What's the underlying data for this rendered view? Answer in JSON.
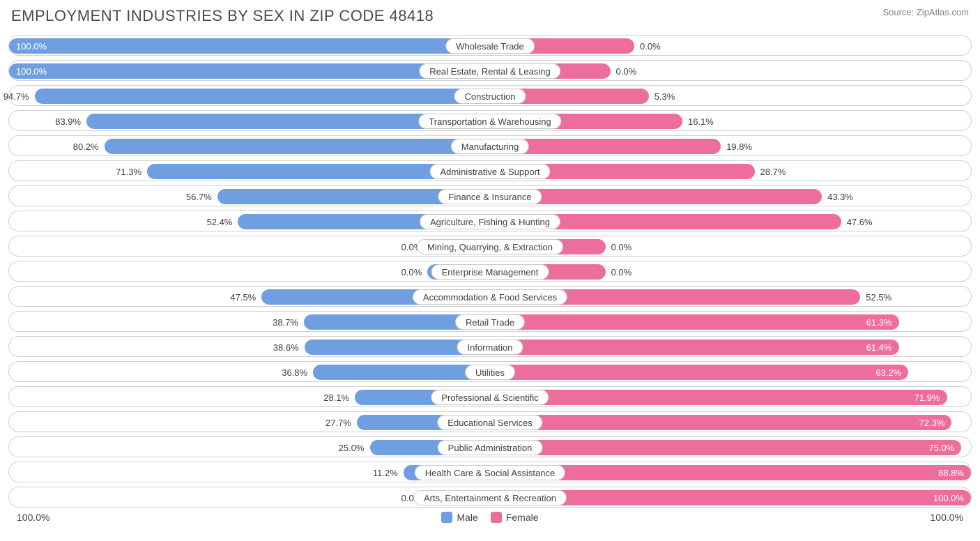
{
  "title": "EMPLOYMENT INDUSTRIES BY SEX IN ZIP CODE 48418",
  "source": "Source: ZipAtlas.com",
  "chart": {
    "type": "diverging-bar",
    "male_color": "#6f9fe0",
    "female_color": "#ed6e9c",
    "row_border_color": "#d0d0d0",
    "background_color": "#ffffff",
    "label_fontsize": 13,
    "title_fontsize": 22,
    "min_bar_pct": 5,
    "axis_left_label": "100.0%",
    "axis_right_label": "100.0%",
    "legend": [
      {
        "label": "Male",
        "color": "#6f9fe0"
      },
      {
        "label": "Female",
        "color": "#ed6e9c"
      }
    ],
    "rows": [
      {
        "category": "Wholesale Trade",
        "male": 100.0,
        "female": 0.0,
        "male_bar": 100.0,
        "female_bar": 30.0,
        "male_label_inside": true,
        "female_label_inside": false
      },
      {
        "category": "Real Estate, Rental & Leasing",
        "male": 100.0,
        "female": 0.0,
        "male_bar": 100.0,
        "female_bar": 25.0,
        "male_label_inside": true,
        "female_label_inside": false
      },
      {
        "category": "Construction",
        "male": 94.7,
        "female": 5.3,
        "male_bar": 94.7,
        "female_bar": 33.0,
        "male_label_inside": false,
        "female_label_inside": false
      },
      {
        "category": "Transportation & Warehousing",
        "male": 83.9,
        "female": 16.1,
        "male_bar": 83.9,
        "female_bar": 40.0,
        "male_label_inside": false,
        "female_label_inside": false
      },
      {
        "category": "Manufacturing",
        "male": 80.2,
        "female": 19.8,
        "male_bar": 80.2,
        "female_bar": 48.0,
        "male_label_inside": false,
        "female_label_inside": false
      },
      {
        "category": "Administrative & Support",
        "male": 71.3,
        "female": 28.7,
        "male_bar": 71.3,
        "female_bar": 55.0,
        "male_label_inside": false,
        "female_label_inside": false
      },
      {
        "category": "Finance & Insurance",
        "male": 56.7,
        "female": 43.3,
        "male_bar": 56.7,
        "female_bar": 69.0,
        "male_label_inside": false,
        "female_label_inside": false
      },
      {
        "category": "Agriculture, Fishing & Hunting",
        "male": 52.4,
        "female": 47.6,
        "male_bar": 52.4,
        "female_bar": 73.0,
        "male_label_inside": false,
        "female_label_inside": false
      },
      {
        "category": "Mining, Quarrying, & Extraction",
        "male": 0.0,
        "female": 0.0,
        "male_bar": 13.0,
        "female_bar": 24.0,
        "male_label_inside": false,
        "female_label_inside": false
      },
      {
        "category": "Enterprise Management",
        "male": 0.0,
        "female": 0.0,
        "male_bar": 13.0,
        "female_bar": 24.0,
        "male_label_inside": false,
        "female_label_inside": false
      },
      {
        "category": "Accommodation & Food Services",
        "male": 47.5,
        "female": 52.5,
        "male_bar": 47.5,
        "female_bar": 77.0,
        "male_label_inside": false,
        "female_label_inside": false
      },
      {
        "category": "Retail Trade",
        "male": 38.7,
        "female": 61.3,
        "male_bar": 38.7,
        "female_bar": 85.0,
        "male_label_inside": false,
        "female_label_inside": true
      },
      {
        "category": "Information",
        "male": 38.6,
        "female": 61.4,
        "male_bar": 38.6,
        "female_bar": 85.0,
        "male_label_inside": false,
        "female_label_inside": true
      },
      {
        "category": "Utilities",
        "male": 36.8,
        "female": 63.2,
        "male_bar": 36.8,
        "female_bar": 87.0,
        "male_label_inside": false,
        "female_label_inside": true
      },
      {
        "category": "Professional & Scientific",
        "male": 28.1,
        "female": 71.9,
        "male_bar": 28.1,
        "female_bar": 95.0,
        "male_label_inside": false,
        "female_label_inside": true
      },
      {
        "category": "Educational Services",
        "male": 27.7,
        "female": 72.3,
        "male_bar": 27.7,
        "female_bar": 96.0,
        "male_label_inside": false,
        "female_label_inside": true
      },
      {
        "category": "Public Administration",
        "male": 25.0,
        "female": 75.0,
        "male_bar": 25.0,
        "female_bar": 98.0,
        "male_label_inside": false,
        "female_label_inside": true
      },
      {
        "category": "Health Care & Social Assistance",
        "male": 11.2,
        "female": 88.8,
        "male_bar": 18.0,
        "female_bar": 100.0,
        "male_label_inside": false,
        "female_label_inside": true
      },
      {
        "category": "Arts, Entertainment & Recreation",
        "male": 0.0,
        "female": 100.0,
        "male_bar": 13.0,
        "female_bar": 100.0,
        "male_label_inside": false,
        "female_label_inside": true
      }
    ]
  }
}
